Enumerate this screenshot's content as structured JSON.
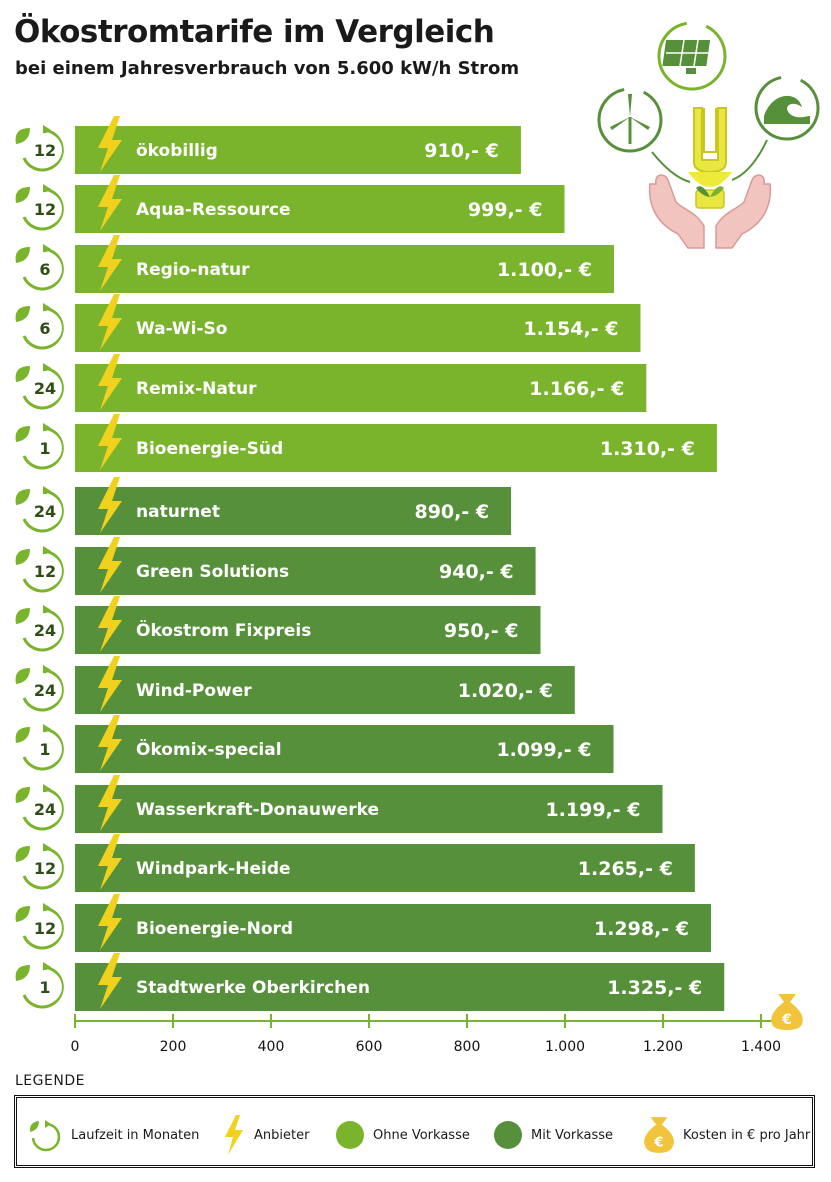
{
  "title": "Ökostromtarife im Vergleich",
  "subtitle": "bei einem Jahresverbrauch von 5.600 kW/h Strom",
  "colors": {
    "ohne_vorkasse": "#7ab42c",
    "mit_vorkasse": "#57903a",
    "bolt": "#f0d21e",
    "badge_leaf": "#7ab42c",
    "money_bag": "#f2c43c"
  },
  "chart_data": {
    "type": "bar",
    "orientation": "horizontal",
    "xlim": [
      0,
      1400
    ],
    "xticks": [
      "0",
      "200",
      "400",
      "600",
      "800",
      "1.000",
      "1.200",
      "1.400"
    ],
    "xtick_values": [
      0,
      200,
      400,
      600,
      800,
      1000,
      1200,
      1400
    ],
    "grid": false,
    "legend_placement": "bottom",
    "bars": [
      {
        "name": "ökobillig",
        "value": 910,
        "value_label": "910,- €",
        "laufzeit": "12",
        "group": "ohne_vorkasse"
      },
      {
        "name": "Aqua-Ressource",
        "value": 999,
        "value_label": "999,- €",
        "laufzeit": "12",
        "group": "ohne_vorkasse"
      },
      {
        "name": "Regio-natur",
        "value": 1100,
        "value_label": "1.100,- €",
        "laufzeit": "6",
        "group": "ohne_vorkasse"
      },
      {
        "name": "Wa-Wi-So",
        "value": 1154,
        "value_label": "1.154,- €",
        "laufzeit": "6",
        "group": "ohne_vorkasse"
      },
      {
        "name": "Remix-Natur",
        "value": 1166,
        "value_label": "1.166,- €",
        "laufzeit": "24",
        "group": "ohne_vorkasse"
      },
      {
        "name": "Bioenergie-Süd",
        "value": 1310,
        "value_label": "1.310,- €",
        "laufzeit": "1",
        "group": "ohne_vorkasse"
      },
      {
        "name": "naturnet",
        "value": 890,
        "value_label": "890,- €",
        "laufzeit": "24",
        "group": "mit_vorkasse"
      },
      {
        "name": "Green Solutions",
        "value": 940,
        "value_label": "940,- €",
        "laufzeit": "12",
        "group": "mit_vorkasse"
      },
      {
        "name": "Ökostrom Fixpreis",
        "value": 950,
        "value_label": "950,- €",
        "laufzeit": "24",
        "group": "mit_vorkasse"
      },
      {
        "name": "Wind-Power",
        "value": 1020,
        "value_label": "1.020,- €",
        "laufzeit": "24",
        "group": "mit_vorkasse"
      },
      {
        "name": "Ökomix-special",
        "value": 1099,
        "value_label": "1.099,- €",
        "laufzeit": "1",
        "group": "mit_vorkasse"
      },
      {
        "name": "Wasserkraft-Donauwerke",
        "value": 1199,
        "value_label": "1.199,- €",
        "laufzeit": "24",
        "group": "mit_vorkasse"
      },
      {
        "name": "Windpark-Heide",
        "value": 1265,
        "value_label": "1.265,- €",
        "laufzeit": "12",
        "group": "mit_vorkasse"
      },
      {
        "name": "Bioenergie-Nord",
        "value": 1298,
        "value_label": "1.298,- €",
        "laufzeit": "12",
        "group": "mit_vorkasse"
      },
      {
        "name": "Stadtwerke Oberkirchen",
        "value": 1325,
        "value_label": "1.325,- €",
        "laufzeit": "1",
        "group": "mit_vorkasse"
      }
    ]
  },
  "legend": {
    "title": "LEGENDE",
    "items": [
      {
        "key": "laufzeit",
        "label": "Laufzeit in Monaten",
        "icon": "circular-arrow-leaf-icon"
      },
      {
        "key": "anbieter",
        "label": "Anbieter",
        "icon": "lightning-bolt-icon"
      },
      {
        "key": "ohne_vorkasse",
        "label": "Ohne Vorkasse",
        "icon": "light-green-dot-icon"
      },
      {
        "key": "mit_vorkasse",
        "label": "Mit Vorkasse",
        "icon": "dark-green-dot-icon"
      },
      {
        "key": "kosten",
        "label": "Kosten in € pro Jahr",
        "icon": "euro-money-bag-icon"
      }
    ]
  },
  "illustration": {
    "icons": [
      "solar-panel-icon",
      "wind-turbine-icon",
      "water-wave-icon",
      "energy-saving-bulb-icon",
      "hands-icon"
    ]
  }
}
